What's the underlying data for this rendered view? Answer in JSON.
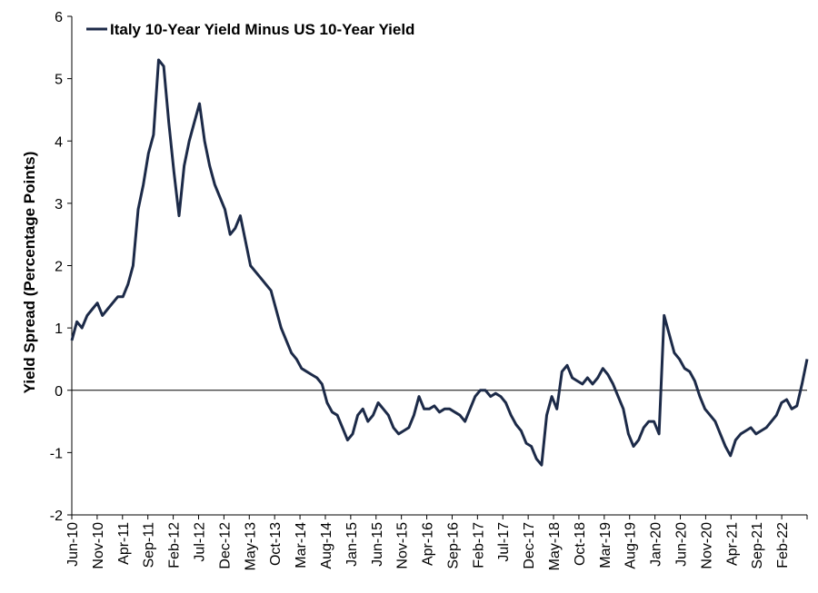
{
  "chart_data": {
    "type": "line",
    "title": "",
    "ylabel": "Yield Spread (Percentage Points)",
    "xlabel": "",
    "ylim": [
      -2,
      6
    ],
    "yticks": [
      -2,
      -1,
      0,
      1,
      2,
      3,
      4,
      5,
      6
    ],
    "grid": false,
    "legend": "top-left",
    "line_color": "#1c2a48",
    "x_tick_labels": [
      "Jun-10",
      "Nov-10",
      "Apr-11",
      "Sep-11",
      "Feb-12",
      "Jul-12",
      "Dec-12",
      "May-13",
      "Oct-13",
      "Mar-14",
      "Aug-14",
      "Jan-15",
      "Jun-15",
      "Nov-15",
      "Apr-16",
      "Sep-16",
      "Feb-17",
      "Jul-17",
      "Dec-17",
      "May-18",
      "Oct-18",
      "Mar-19",
      "Aug-19",
      "Jan-20",
      "Jun-20",
      "Nov-20",
      "Apr-21",
      "Sep-21",
      "Feb-22"
    ],
    "series": [
      {
        "name": "Italy 10-Year Yield Minus US 10-Year Yield",
        "x": [
          "Jun-10",
          "Jul-10",
          "Aug-10",
          "Sep-10",
          "Oct-10",
          "Nov-10",
          "Dec-10",
          "Jan-11",
          "Feb-11",
          "Mar-11",
          "Apr-11",
          "May-11",
          "Jun-11",
          "Jul-11",
          "Aug-11",
          "Sep-11",
          "Oct-11",
          "Nov-11",
          "Dec-11",
          "Jan-12",
          "Feb-12",
          "Mar-12",
          "Apr-12",
          "May-12",
          "Jun-12",
          "Jul-12",
          "Aug-12",
          "Sep-12",
          "Oct-12",
          "Nov-12",
          "Dec-12",
          "Jan-13",
          "Feb-13",
          "Mar-13",
          "Apr-13",
          "May-13",
          "Jun-13",
          "Jul-13",
          "Aug-13",
          "Sep-13",
          "Oct-13",
          "Nov-13",
          "Dec-13",
          "Jan-14",
          "Feb-14",
          "Mar-14",
          "Apr-14",
          "May-14",
          "Jun-14",
          "Jul-14",
          "Aug-14",
          "Sep-14",
          "Oct-14",
          "Nov-14",
          "Dec-14",
          "Jan-15",
          "Feb-15",
          "Mar-15",
          "Apr-15",
          "May-15",
          "Jun-15",
          "Jul-15",
          "Aug-15",
          "Sep-15",
          "Oct-15",
          "Nov-15",
          "Dec-15",
          "Jan-16",
          "Feb-16",
          "Mar-16",
          "Apr-16",
          "May-16",
          "Jun-16",
          "Jul-16",
          "Aug-16",
          "Sep-16",
          "Oct-16",
          "Nov-16",
          "Dec-16",
          "Jan-17",
          "Feb-17",
          "Mar-17",
          "Apr-17",
          "May-17",
          "Jun-17",
          "Jul-17",
          "Aug-17",
          "Sep-17",
          "Oct-17",
          "Nov-17",
          "Dec-17",
          "Jan-18",
          "Feb-18",
          "Mar-18",
          "Apr-18",
          "May-18",
          "Jun-18",
          "Jul-18",
          "Aug-18",
          "Sep-18",
          "Oct-18",
          "Nov-18",
          "Dec-18",
          "Jan-19",
          "Feb-19",
          "Mar-19",
          "Apr-19",
          "May-19",
          "Jun-19",
          "Jul-19",
          "Aug-19",
          "Sep-19",
          "Oct-19",
          "Nov-19",
          "Dec-19",
          "Jan-20",
          "Feb-20",
          "Mar-20",
          "Apr-20",
          "May-20",
          "Jun-20",
          "Jul-20",
          "Aug-20",
          "Sep-20",
          "Oct-20",
          "Nov-20",
          "Dec-20",
          "Jan-21",
          "Feb-21",
          "Mar-21",
          "Apr-21",
          "May-21",
          "Jun-21",
          "Jul-21",
          "Aug-21",
          "Sep-21",
          "Oct-21",
          "Nov-21",
          "Dec-21",
          "Jan-22",
          "Feb-22",
          "Mar-22",
          "Apr-22",
          "May-22",
          "Jun-22"
        ],
        "values": [
          0.8,
          1.1,
          1.0,
          1.2,
          1.3,
          1.4,
          1.2,
          1.3,
          1.4,
          1.5,
          1.5,
          1.7,
          2.0,
          2.9,
          3.3,
          3.8,
          4.1,
          5.3,
          5.2,
          4.3,
          3.5,
          2.8,
          3.6,
          4.0,
          4.3,
          4.6,
          4.0,
          3.6,
          3.3,
          3.1,
          2.9,
          2.5,
          2.6,
          2.8,
          2.4,
          2.0,
          1.9,
          1.8,
          1.7,
          1.6,
          1.3,
          1.0,
          0.8,
          0.6,
          0.5,
          0.35,
          0.3,
          0.25,
          0.2,
          0.1,
          -0.2,
          -0.35,
          -0.4,
          -0.6,
          -0.8,
          -0.7,
          -0.4,
          -0.3,
          -0.5,
          -0.4,
          -0.2,
          -0.3,
          -0.4,
          -0.6,
          -0.7,
          -0.65,
          -0.6,
          -0.4,
          -0.1,
          -0.3,
          -0.3,
          -0.25,
          -0.35,
          -0.3,
          -0.3,
          -0.35,
          -0.4,
          -0.5,
          -0.3,
          -0.1,
          0.0,
          0.0,
          -0.1,
          -0.05,
          -0.1,
          -0.2,
          -0.4,
          -0.55,
          -0.65,
          -0.85,
          -0.9,
          -1.1,
          -1.2,
          -0.4,
          -0.1,
          -0.3,
          0.3,
          0.4,
          0.2,
          0.15,
          0.1,
          0.2,
          0.1,
          0.2,
          0.35,
          0.25,
          0.1,
          -0.1,
          -0.3,
          -0.7,
          -0.9,
          -0.8,
          -0.6,
          -0.5,
          -0.5,
          -0.7,
          1.2,
          0.9,
          0.6,
          0.5,
          0.35,
          0.3,
          0.15,
          -0.1,
          -0.3,
          -0.4,
          -0.5,
          -0.7,
          -0.9,
          -1.05,
          -0.8,
          -0.7,
          -0.65,
          -0.6,
          -0.7,
          -0.65,
          -0.6,
          -0.5,
          -0.4,
          -0.2,
          -0.15,
          -0.3,
          -0.25,
          0.1,
          0.5
        ]
      }
    ]
  }
}
